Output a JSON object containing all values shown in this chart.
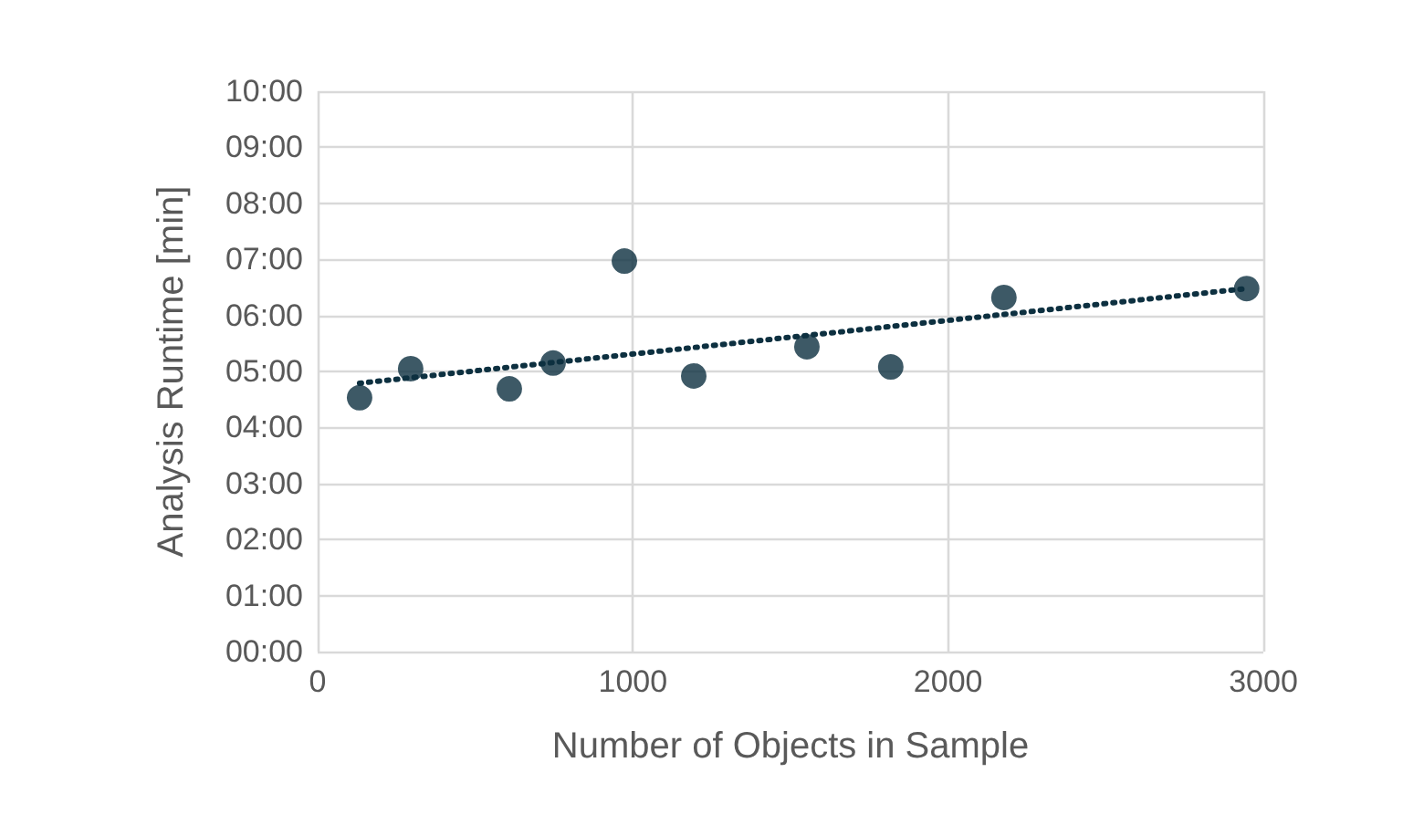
{
  "chart_data": {
    "type": "scatter",
    "xlabel": "Number of Objects in Sample",
    "ylabel": "Analysis Runtime [min]",
    "xlim": [
      0,
      3000
    ],
    "xticks": [
      0,
      1000,
      2000,
      3000
    ],
    "ylim": [
      0,
      10
    ],
    "yticks": [
      {
        "value": 0,
        "label": "00:00"
      },
      {
        "value": 1,
        "label": "01:00"
      },
      {
        "value": 2,
        "label": "02:00"
      },
      {
        "value": 3,
        "label": "03:00"
      },
      {
        "value": 4,
        "label": "04:00"
      },
      {
        "value": 5,
        "label": "05:00"
      },
      {
        "value": 6,
        "label": "06:00"
      },
      {
        "value": 7,
        "label": "07:00"
      },
      {
        "value": 8,
        "label": "08:00"
      },
      {
        "value": 9,
        "label": "09:00"
      },
      {
        "value": 10,
        "label": "10:00"
      }
    ],
    "grid": true,
    "series": [
      {
        "color": "#0d3040",
        "marker": "circle",
        "x": [
          133,
          295,
          608,
          747,
          973,
          1193,
          1552,
          1818,
          2177,
          2947
        ],
        "values": [
          4.53,
          5.05,
          4.69,
          5.15,
          6.97,
          4.92,
          5.44,
          5.08,
          6.32,
          6.48
        ]
      },
      {
        "type": "line",
        "color": "#0d3040",
        "marker": "none",
        "line_style": "dotted",
        "x": [
          133,
          2947
        ],
        "values": [
          4.79,
          6.48
        ]
      }
    ]
  }
}
